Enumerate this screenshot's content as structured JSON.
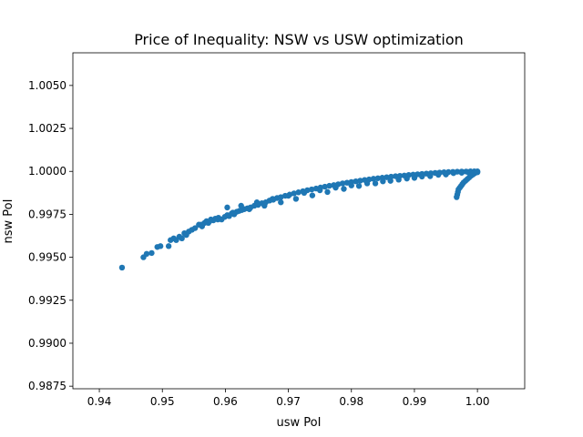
{
  "chart_data": {
    "type": "scatter",
    "title": "Price of Inequality: NSW vs USW optimization",
    "xlabel": "usw PoI",
    "ylabel": "nsw PoI",
    "xlim": [
      0.9358,
      1.0075
    ],
    "ylim": [
      0.98735,
      1.0069
    ],
    "xticks": [
      0.94,
      0.95,
      0.96,
      0.97,
      0.98,
      0.99,
      1.0
    ],
    "xtick_labels": [
      "0.94",
      "0.95",
      "0.96",
      "0.97",
      "0.98",
      "0.99",
      "1.00"
    ],
    "yticks": [
      0.9875,
      0.99,
      0.9925,
      0.995,
      0.9975,
      1.0,
      1.0025,
      1.005
    ],
    "ytick_labels": [
      "0.9875",
      "0.9900",
      "0.9925",
      "0.9950",
      "0.9975",
      "1.0000",
      "1.0025",
      "1.0050"
    ],
    "grid": false,
    "legend": false,
    "color": "#1f77b4",
    "series": [
      {
        "x": [
          0.9436,
          0.947,
          0.9475,
          0.9483,
          0.9492,
          0.9497,
          0.951,
          0.9513,
          0.9518,
          0.9522,
          0.9527,
          0.9531,
          0.9535,
          0.9538,
          0.9542,
          0.9547,
          0.9552,
          0.9558,
          0.9563,
          0.9567,
          0.957,
          0.9573,
          0.9577,
          0.9581,
          0.9584,
          0.9589,
          0.9594,
          0.9599,
          0.9603,
          0.9606,
          0.961,
          0.9614,
          0.9618,
          0.9622,
          0.9626,
          0.963,
          0.9635,
          0.964,
          0.9646,
          0.9652,
          0.9658,
          0.9664,
          0.967,
          0.9676,
          0.9682,
          0.9688,
          0.9695,
          0.9702,
          0.9709,
          0.9716,
          0.9723,
          0.973,
          0.9737,
          0.9744,
          0.9751,
          0.9758,
          0.9765,
          0.9772,
          0.9779,
          0.9786,
          0.9793,
          0.98,
          0.9807,
          0.9814,
          0.9821,
          0.9828,
          0.9835,
          0.9842,
          0.9849,
          0.9856,
          0.9863,
          0.987,
          0.9877,
          0.9884,
          0.9891,
          0.9898,
          0.9905,
          0.9912,
          0.9919,
          0.9926,
          0.9933,
          0.994,
          0.9947,
          0.9954,
          0.9961,
          0.9968,
          0.9975,
          0.9982,
          0.9989,
          0.9995,
          1.0,
          0.9603,
          0.9625,
          0.965,
          0.9675,
          0.97,
          0.9725,
          0.975,
          0.9775,
          0.98,
          0.9825,
          0.985,
          0.9875,
          0.99,
          0.9925,
          0.995,
          0.9975,
          0.9562,
          0.9575,
          0.9588,
          0.9612,
          0.9638,
          0.9662,
          0.9688,
          0.9712,
          0.9738,
          0.9762,
          0.9788,
          0.9812,
          0.9838,
          0.9862,
          0.9888,
          0.9912,
          0.9938,
          0.9962,
          0.9985,
          0.9967,
          0.9968,
          0.9969,
          0.997,
          0.9972,
          0.9974,
          0.9976,
          0.9978,
          0.9981,
          0.9984,
          0.9987,
          0.999,
          0.9993,
          0.9996,
          0.9998,
          0.9999,
          1.0
        ],
        "y": [
          0.9944,
          0.995,
          0.9952,
          0.99525,
          0.9956,
          0.99565,
          0.99565,
          0.996,
          0.9961,
          0.996,
          0.9962,
          0.9961,
          0.9964,
          0.9963,
          0.9965,
          0.9966,
          0.9967,
          0.9969,
          0.9968,
          0.997,
          0.9971,
          0.997,
          0.9972,
          0.99715,
          0.99725,
          0.9973,
          0.9972,
          0.99735,
          0.99745,
          0.9974,
          0.99755,
          0.9975,
          0.99765,
          0.9977,
          0.99775,
          0.9978,
          0.99785,
          0.9979,
          0.998,
          0.99805,
          0.99815,
          0.9982,
          0.9983,
          0.99835,
          0.99845,
          0.9985,
          0.99858,
          0.99865,
          0.99872,
          0.99878,
          0.99884,
          0.9989,
          0.99895,
          0.999,
          0.99906,
          0.99911,
          0.99916,
          0.9992,
          0.99925,
          0.9993,
          0.99934,
          0.99938,
          0.99942,
          0.99946,
          0.9995,
          0.99953,
          0.99957,
          0.9996,
          0.99963,
          0.99966,
          0.99969,
          0.99972,
          0.99974,
          0.99976,
          0.99979,
          0.99981,
          0.99983,
          0.99985,
          0.99987,
          0.99989,
          0.99991,
          0.99993,
          0.99995,
          0.99996,
          0.99997,
          0.99998,
          0.99999,
          0.99999,
          1.0,
          1.0,
          1.0,
          0.9979,
          0.998,
          0.9982,
          0.9984,
          0.99858,
          0.99875,
          0.9989,
          0.99905,
          0.99918,
          0.9993,
          0.99942,
          0.99952,
          0.99962,
          0.99972,
          0.99982,
          0.99992,
          0.9969,
          0.9971,
          0.9972,
          0.9976,
          0.9978,
          0.998,
          0.9982,
          0.9984,
          0.9986,
          0.9988,
          0.99898,
          0.99915,
          0.9993,
          0.99945,
          0.99958,
          0.9997,
          0.9998,
          0.9999,
          0.99996,
          0.9985,
          0.99865,
          0.9988,
          0.99895,
          0.99905,
          0.99915,
          0.99925,
          0.99935,
          0.99945,
          0.99955,
          0.99965,
          0.99975,
          0.99982,
          0.9999,
          0.99995,
          0.99998,
          0.99995
        ]
      }
    ]
  }
}
